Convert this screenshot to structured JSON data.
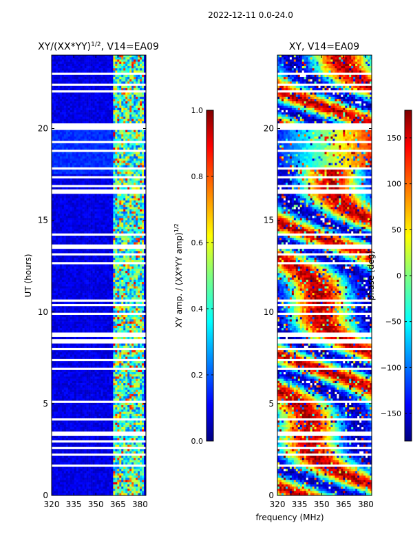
{
  "figure_title": "2022-12-11 0.0-24.0",
  "xlabel_shared": "frequency (MHz)",
  "chart_data": [
    {
      "type": "heatmap",
      "title_main": "XY/(XX*YY)",
      "title_sup": "1/2",
      "title_tail": ", V14=EA09",
      "xlabel": "",
      "ylabel": "UT (hours)",
      "xlim": [
        320,
        384
      ],
      "ylim": [
        0,
        24
      ],
      "xticks": [
        320,
        335,
        350,
        365,
        380
      ],
      "yticks": [
        0,
        5,
        10,
        15,
        20
      ],
      "colorbar": {
        "label_main": "XY amp. / (XX*YY amp)",
        "label_sup": "1/2",
        "range": [
          0.0,
          1.0
        ],
        "ticks": [
          "0.0",
          "0.2",
          "0.4",
          "0.6",
          "0.8",
          "1.0"
        ],
        "colormap": "jet"
      }
    },
    {
      "type": "heatmap",
      "title_main": "XY, V14=EA09",
      "xlabel": "frequency (MHz)",
      "ylabel": "",
      "xlim": [
        320,
        384
      ],
      "ylim": [
        0,
        24
      ],
      "xticks": [
        320,
        335,
        350,
        365,
        380
      ],
      "yticks": [
        0,
        5,
        10,
        15,
        20
      ],
      "colorbar": {
        "label_main": "phase (deg)",
        "range": [
          -180,
          180
        ],
        "ticks": [
          "150",
          "100",
          "50",
          "0",
          "−50",
          "−100",
          "−150"
        ],
        "colormap": "jet"
      }
    }
  ],
  "colors": {
    "background": "#ffffff",
    "jet_low": "#00007f",
    "jet_high": "#7f0000"
  }
}
